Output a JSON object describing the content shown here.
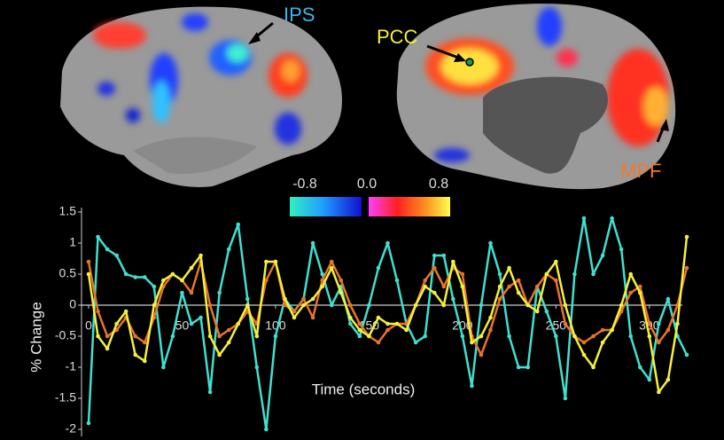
{
  "chart_data": {
    "type": "line",
    "annotations": [
      "IPS",
      "PCC",
      "MPF"
    ],
    "colorbar": {
      "labels": [
        "-0.8",
        "0.0",
        "0.8"
      ]
    },
    "xlabel": "Time (seconds)",
    "ylabel": "% Change",
    "xlim": [
      0,
      320
    ],
    "ylim": [
      -2,
      1.5
    ],
    "xticks": [
      0,
      50,
      100,
      150,
      200,
      250,
      300
    ],
    "yticks": [
      1.5,
      1,
      0.5,
      0,
      -0.5,
      -1,
      -1.5,
      -2
    ],
    "x": [
      0,
      5,
      10,
      15,
      20,
      25,
      30,
      35,
      40,
      45,
      50,
      55,
      60,
      65,
      70,
      75,
      80,
      85,
      90,
      95,
      100,
      105,
      110,
      115,
      120,
      125,
      130,
      135,
      140,
      145,
      150,
      155,
      160,
      165,
      170,
      175,
      180,
      185,
      190,
      195,
      200,
      205,
      210,
      215,
      220,
      225,
      230,
      235,
      240,
      245,
      250,
      255,
      260,
      265,
      270,
      275,
      280,
      285,
      290,
      295,
      300,
      305,
      310,
      315,
      320
    ],
    "series": [
      {
        "color": "#3fe0d0",
        "values": [
          -1.9,
          1.1,
          0.9,
          0.8,
          0.5,
          0.45,
          0.45,
          0.3,
          -1.0,
          -0.5,
          0.2,
          -0.3,
          -0.2,
          -1.4,
          0.2,
          0.9,
          1.3,
          0.1,
          -1.0,
          -2.0,
          -0.5,
          0.1,
          -0.1,
          0.1,
          1.0,
          0.5,
          0.0,
          0.3,
          -0.3,
          -0.5,
          0.0,
          0.6,
          1.0,
          0.4,
          -0.3,
          -0.6,
          -0.5,
          0.8,
          0.8,
          0.1,
          -0.5,
          -1.3,
          0.0,
          1.0,
          0.5,
          -0.5,
          -1.0,
          -1.0,
          0.3,
          -0.1,
          -0.5,
          -1.5,
          0.5,
          1.4,
          0.5,
          0.8,
          1.4,
          0.9,
          -0.5,
          -1.0,
          -1.2,
          -0.3,
          0.1,
          -0.5,
          -0.8
        ]
      },
      {
        "color": "#e8742a",
        "values": [
          0.7,
          -0.1,
          -0.5,
          -0.4,
          -0.2,
          -0.5,
          -0.6,
          -0.2,
          0.3,
          0.5,
          0.4,
          0.2,
          0.7,
          0.0,
          -0.5,
          -0.4,
          -0.3,
          -0.1,
          -0.3,
          0.4,
          0.7,
          0.0,
          -0.1,
          0.1,
          -0.2,
          0.4,
          0.7,
          0.4,
          0.0,
          -0.3,
          -0.5,
          -0.6,
          -0.4,
          -0.3,
          -0.3,
          0.0,
          0.4,
          0.6,
          0.3,
          0.6,
          0.5,
          -0.5,
          -0.8,
          -0.4,
          0.1,
          0.3,
          0.4,
          0.0,
          0.3,
          0.5,
          0.4,
          -0.3,
          -0.5,
          -0.6,
          -0.5,
          -0.4,
          -0.4,
          -0.1,
          0.2,
          0.3,
          -0.3,
          -0.6,
          -0.4,
          0.0,
          0.6
        ]
      },
      {
        "color": "#f4f03c",
        "values": [
          0.5,
          -0.5,
          -0.7,
          -0.3,
          -0.1,
          -0.8,
          -0.9,
          0.0,
          0.4,
          0.5,
          0.4,
          0.6,
          0.8,
          -0.5,
          -0.8,
          -0.6,
          -0.3,
          0.0,
          -0.5,
          0.7,
          0.7,
          0.1,
          -0.2,
          0.0,
          0.1,
          0.3,
          0.6,
          0.2,
          -0.2,
          -0.4,
          -0.5,
          -0.2,
          -0.3,
          -0.3,
          -0.4,
          0.0,
          0.3,
          0.2,
          0.0,
          0.7,
          0.3,
          -0.6,
          -0.5,
          -0.2,
          0.3,
          0.6,
          0.2,
          0.0,
          -0.1,
          0.5,
          0.7,
          0.0,
          -0.5,
          -0.8,
          -1.0,
          -0.6,
          -0.4,
          0.0,
          0.5,
          0.2,
          -0.5,
          -1.4,
          -1.2,
          -0.3,
          1.1
        ]
      }
    ]
  }
}
